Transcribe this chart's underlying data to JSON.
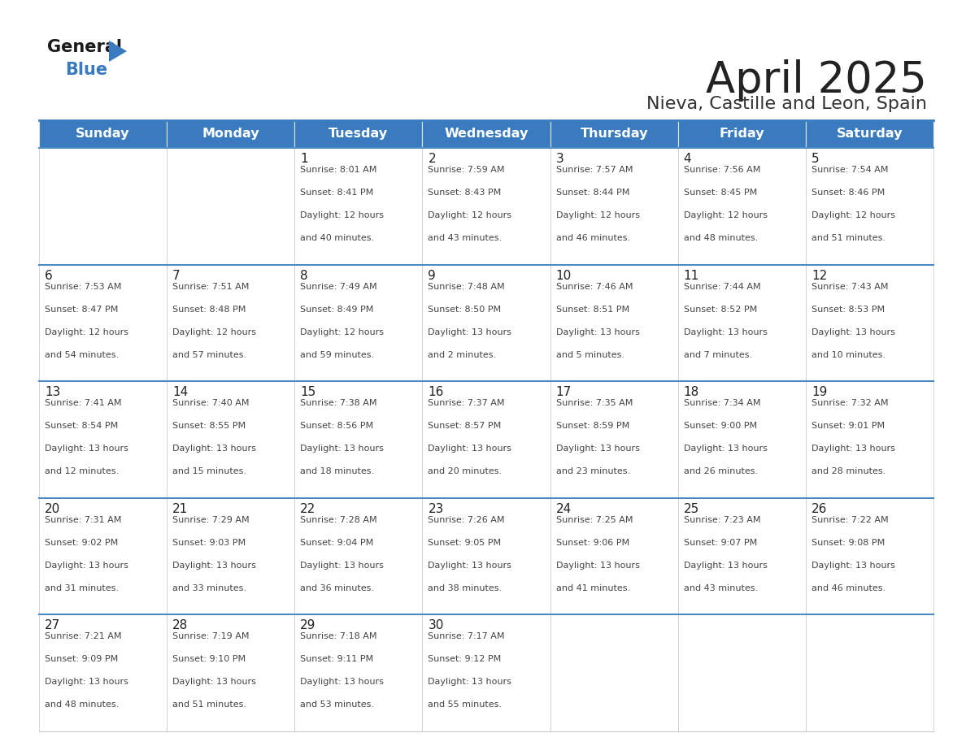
{
  "title": "April 2025",
  "subtitle": "Nieva, Castille and Leon, Spain",
  "header_bg": "#3a7bbf",
  "header_text": "#ffffff",
  "border_color": "#3a7bbf",
  "row_border_color": "#4a8ac4",
  "cell_border_color": "#cccccc",
  "days_of_week": [
    "Sunday",
    "Monday",
    "Tuesday",
    "Wednesday",
    "Thursday",
    "Friday",
    "Saturday"
  ],
  "title_color": "#222222",
  "subtitle_color": "#333333",
  "day_num_color": "#222222",
  "cell_text_color": "#444444",
  "calendar": [
    [
      {
        "day": "",
        "sunrise": "",
        "sunset": "",
        "hours": "",
        "minutes": ""
      },
      {
        "day": "",
        "sunrise": "",
        "sunset": "",
        "hours": "",
        "minutes": ""
      },
      {
        "day": "1",
        "sunrise": "8:01 AM",
        "sunset": "8:41 PM",
        "hours": "12",
        "minutes": "40"
      },
      {
        "day": "2",
        "sunrise": "7:59 AM",
        "sunset": "8:43 PM",
        "hours": "12",
        "minutes": "43"
      },
      {
        "day": "3",
        "sunrise": "7:57 AM",
        "sunset": "8:44 PM",
        "hours": "12",
        "minutes": "46"
      },
      {
        "day": "4",
        "sunrise": "7:56 AM",
        "sunset": "8:45 PM",
        "hours": "12",
        "minutes": "48"
      },
      {
        "day": "5",
        "sunrise": "7:54 AM",
        "sunset": "8:46 PM",
        "hours": "12",
        "minutes": "51"
      }
    ],
    [
      {
        "day": "6",
        "sunrise": "7:53 AM",
        "sunset": "8:47 PM",
        "hours": "12",
        "minutes": "54"
      },
      {
        "day": "7",
        "sunrise": "7:51 AM",
        "sunset": "8:48 PM",
        "hours": "12",
        "minutes": "57"
      },
      {
        "day": "8",
        "sunrise": "7:49 AM",
        "sunset": "8:49 PM",
        "hours": "12",
        "minutes": "59"
      },
      {
        "day": "9",
        "sunrise": "7:48 AM",
        "sunset": "8:50 PM",
        "hours": "13",
        "minutes": "2"
      },
      {
        "day": "10",
        "sunrise": "7:46 AM",
        "sunset": "8:51 PM",
        "hours": "13",
        "minutes": "5"
      },
      {
        "day": "11",
        "sunrise": "7:44 AM",
        "sunset": "8:52 PM",
        "hours": "13",
        "minutes": "7"
      },
      {
        "day": "12",
        "sunrise": "7:43 AM",
        "sunset": "8:53 PM",
        "hours": "13",
        "minutes": "10"
      }
    ],
    [
      {
        "day": "13",
        "sunrise": "7:41 AM",
        "sunset": "8:54 PM",
        "hours": "13",
        "minutes": "12"
      },
      {
        "day": "14",
        "sunrise": "7:40 AM",
        "sunset": "8:55 PM",
        "hours": "13",
        "minutes": "15"
      },
      {
        "day": "15",
        "sunrise": "7:38 AM",
        "sunset": "8:56 PM",
        "hours": "13",
        "minutes": "18"
      },
      {
        "day": "16",
        "sunrise": "7:37 AM",
        "sunset": "8:57 PM",
        "hours": "13",
        "minutes": "20"
      },
      {
        "day": "17",
        "sunrise": "7:35 AM",
        "sunset": "8:59 PM",
        "hours": "13",
        "minutes": "23"
      },
      {
        "day": "18",
        "sunrise": "7:34 AM",
        "sunset": "9:00 PM",
        "hours": "13",
        "minutes": "26"
      },
      {
        "day": "19",
        "sunrise": "7:32 AM",
        "sunset": "9:01 PM",
        "hours": "13",
        "minutes": "28"
      }
    ],
    [
      {
        "day": "20",
        "sunrise": "7:31 AM",
        "sunset": "9:02 PM",
        "hours": "13",
        "minutes": "31"
      },
      {
        "day": "21",
        "sunrise": "7:29 AM",
        "sunset": "9:03 PM",
        "hours": "13",
        "minutes": "33"
      },
      {
        "day": "22",
        "sunrise": "7:28 AM",
        "sunset": "9:04 PM",
        "hours": "13",
        "minutes": "36"
      },
      {
        "day": "23",
        "sunrise": "7:26 AM",
        "sunset": "9:05 PM",
        "hours": "13",
        "minutes": "38"
      },
      {
        "day": "24",
        "sunrise": "7:25 AM",
        "sunset": "9:06 PM",
        "hours": "13",
        "minutes": "41"
      },
      {
        "day": "25",
        "sunrise": "7:23 AM",
        "sunset": "9:07 PM",
        "hours": "13",
        "minutes": "43"
      },
      {
        "day": "26",
        "sunrise": "7:22 AM",
        "sunset": "9:08 PM",
        "hours": "13",
        "minutes": "46"
      }
    ],
    [
      {
        "day": "27",
        "sunrise": "7:21 AM",
        "sunset": "9:09 PM",
        "hours": "13",
        "minutes": "48"
      },
      {
        "day": "28",
        "sunrise": "7:19 AM",
        "sunset": "9:10 PM",
        "hours": "13",
        "minutes": "51"
      },
      {
        "day": "29",
        "sunrise": "7:18 AM",
        "sunset": "9:11 PM",
        "hours": "13",
        "minutes": "53"
      },
      {
        "day": "30",
        "sunrise": "7:17 AM",
        "sunset": "9:12 PM",
        "hours": "13",
        "minutes": "55"
      },
      {
        "day": "",
        "sunrise": "",
        "sunset": "",
        "hours": "",
        "minutes": ""
      },
      {
        "day": "",
        "sunrise": "",
        "sunset": "",
        "hours": "",
        "minutes": ""
      },
      {
        "day": "",
        "sunrise": "",
        "sunset": "",
        "hours": "",
        "minutes": ""
      }
    ]
  ]
}
